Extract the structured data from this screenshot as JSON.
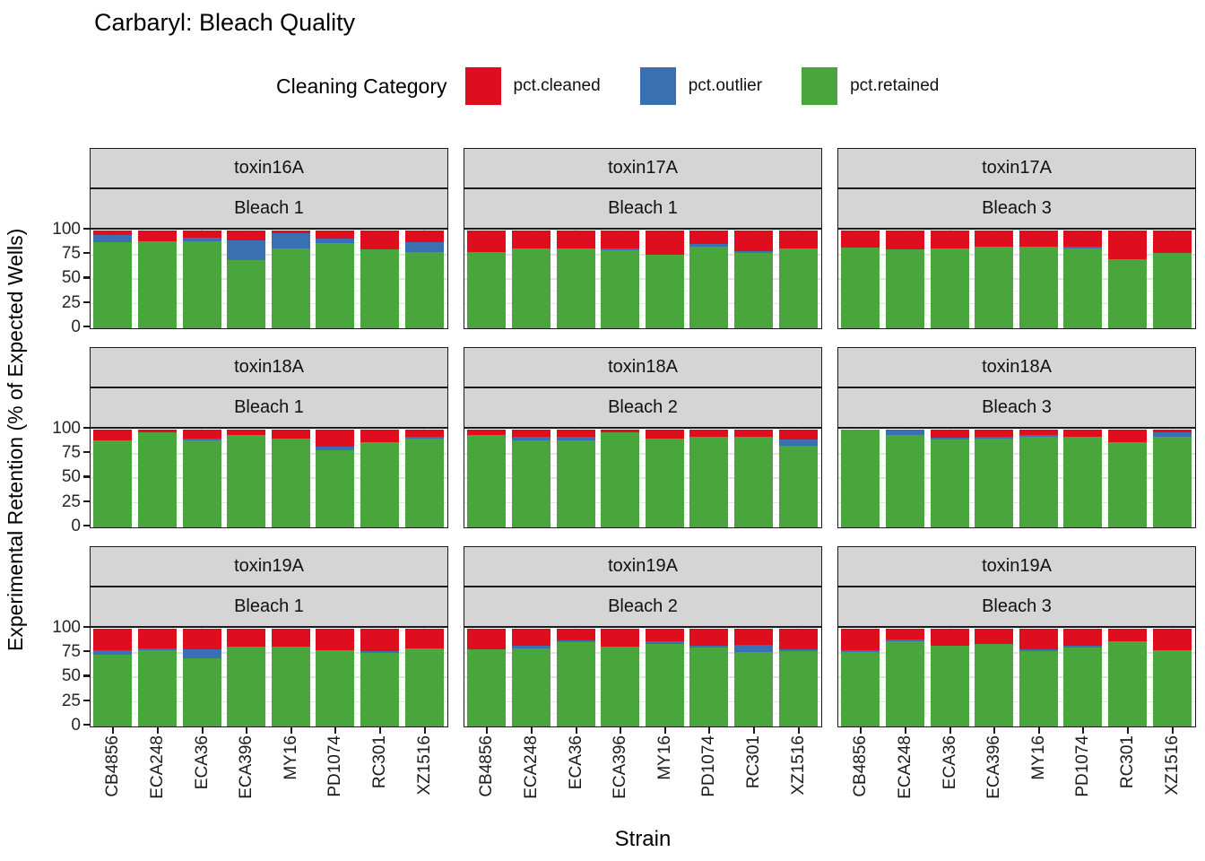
{
  "title": "Carbaryl: Bleach Quality",
  "legend": {
    "title": "Cleaning Category",
    "items": [
      {
        "label": "pct.cleaned",
        "color": "#DE0E1E"
      },
      {
        "label": "pct.outlier",
        "color": "#3A70B2"
      },
      {
        "label": "pct.retained",
        "color": "#48A63C"
      }
    ]
  },
  "axes": {
    "y_title": "Experimental Retention (% of Expected Wells)",
    "x_title": "Strain",
    "y_ticks": [
      100,
      75,
      50,
      25,
      0
    ]
  },
  "chart_data": {
    "type": "bar",
    "stacked": true,
    "ylim": [
      0,
      100
    ],
    "grid": "on",
    "legend_position": "top",
    "categories": [
      "CB4856",
      "ECA248",
      "ECA36",
      "ECA396",
      "MY16",
      "PD1074",
      "RC301",
      "XZ1516"
    ],
    "series_order": [
      "pct.retained",
      "pct.outlier",
      "pct.cleaned"
    ],
    "facet_layout": {
      "rows": 3,
      "cols": 3
    },
    "panels": [
      {
        "facet_toxin": "toxin16A",
        "facet_bleach": "Bleach 1",
        "values": {
          "pct.retained": [
            88,
            89,
            89,
            70,
            82,
            87,
            81,
            78
          ],
          "pct.outlier": [
            8,
            0,
            4,
            20,
            15,
            5,
            0,
            10
          ],
          "pct.cleaned": [
            4,
            11,
            7,
            10,
            3,
            8,
            19,
            12
          ]
        }
      },
      {
        "facet_toxin": "toxin17A",
        "facet_bleach": "Bleach 1",
        "values": {
          "pct.retained": [
            78,
            82,
            82,
            80,
            75,
            84,
            77,
            82
          ],
          "pct.outlier": [
            0,
            0,
            0,
            2,
            0,
            2,
            2,
            0
          ],
          "pct.cleaned": [
            22,
            18,
            18,
            18,
            25,
            14,
            21,
            18
          ]
        }
      },
      {
        "facet_toxin": "toxin17A",
        "facet_bleach": "Bleach 3",
        "values": {
          "pct.retained": [
            83,
            81,
            82,
            84,
            84,
            82,
            71,
            77
          ],
          "pct.outlier": [
            0,
            0,
            0,
            0,
            0,
            2,
            0,
            0
          ],
          "pct.cleaned": [
            17,
            19,
            18,
            16,
            16,
            16,
            29,
            23
          ]
        }
      },
      {
        "facet_toxin": "toxin18A",
        "facet_bleach": "Bleach 1",
        "values": {
          "pct.retained": [
            89,
            97,
            89,
            95,
            91,
            79,
            87,
            91
          ],
          "pct.outlier": [
            0,
            0,
            2,
            0,
            0,
            4,
            0,
            2
          ],
          "pct.cleaned": [
            11,
            3,
            9,
            5,
            9,
            17,
            13,
            7
          ]
        }
      },
      {
        "facet_toxin": "toxin18A",
        "facet_bleach": "Bleach 2",
        "values": {
          "pct.retained": [
            95,
            89,
            89,
            97,
            91,
            93,
            93,
            84
          ],
          "pct.outlier": [
            0,
            4,
            4,
            0,
            0,
            0,
            0,
            6
          ],
          "pct.cleaned": [
            5,
            7,
            7,
            3,
            9,
            7,
            7,
            10
          ]
        }
      },
      {
        "facet_toxin": "toxin18A",
        "facet_bleach": "Bleach 3",
        "values": {
          "pct.retained": [
            100,
            95,
            90,
            91,
            93,
            93,
            87,
            93
          ],
          "pct.outlier": [
            0,
            5,
            2,
            2,
            2,
            0,
            0,
            4
          ],
          "pct.cleaned": [
            0,
            0,
            8,
            7,
            5,
            7,
            13,
            3
          ]
        }
      },
      {
        "facet_toxin": "toxin19A",
        "facet_bleach": "Bleach 1",
        "values": {
          "pct.retained": [
            74,
            78,
            70,
            82,
            82,
            78,
            75,
            80
          ],
          "pct.outlier": [
            4,
            2,
            9,
            0,
            0,
            0,
            2,
            0
          ],
          "pct.cleaned": [
            22,
            20,
            21,
            18,
            18,
            22,
            23,
            20
          ]
        }
      },
      {
        "facet_toxin": "toxin19A",
        "facet_bleach": "Bleach 2",
        "values": {
          "pct.retained": [
            79,
            80,
            86,
            82,
            85,
            81,
            76,
            77
          ],
          "pct.outlier": [
            0,
            3,
            2,
            0,
            2,
            2,
            8,
            2
          ],
          "pct.cleaned": [
            21,
            17,
            12,
            18,
            13,
            17,
            16,
            21
          ]
        }
      },
      {
        "facet_toxin": "toxin19A",
        "facet_bleach": "Bleach 3",
        "values": {
          "pct.retained": [
            76,
            87,
            83,
            85,
            77,
            81,
            87,
            78
          ],
          "pct.outlier": [
            2,
            2,
            0,
            0,
            2,
            2,
            0,
            0
          ],
          "pct.cleaned": [
            22,
            11,
            17,
            15,
            21,
            17,
            13,
            22
          ]
        }
      }
    ]
  }
}
